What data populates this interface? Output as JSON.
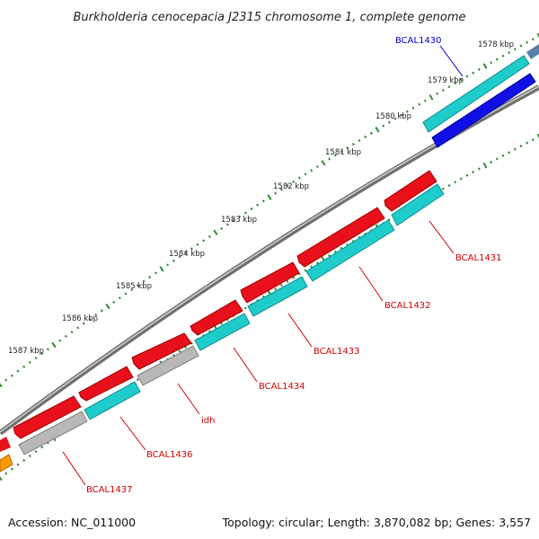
{
  "title": "Burkholderia cenocepacia J2315 chromosome 1, complete genome",
  "footer": {
    "accession": "Accession: NC_011000",
    "summary": "Topology: circular; Length: 3,870,082 bp; Genes: 3,557"
  },
  "colors": {
    "background": "#ffffff",
    "backbone": "#8c8c8c",
    "tick": "#2e8b2e",
    "forward_cds": "#e8111b",
    "reverse_cds": "#1fcccc",
    "other_gene": "#b8b8b8",
    "rna": "#1010e6",
    "misc_feature": "#ff9900",
    "label_red": "#d40000",
    "label_blue": "#0000cc"
  },
  "tick_labels": [
    {
      "text": "1578 kbp"
    },
    {
      "text": "1579 kbp"
    },
    {
      "text": "1580 kbp"
    },
    {
      "text": "1581 kbp"
    },
    {
      "text": "1582 kbp"
    },
    {
      "text": "1583 kbp"
    },
    {
      "text": "1584 kbp"
    },
    {
      "text": "1585 kbp"
    },
    {
      "text": "1586 kbp"
    },
    {
      "text": "1587 kbp"
    }
  ],
  "gene_labels": [
    {
      "text": "BCAL1430",
      "color": "blue"
    },
    {
      "text": "BCAL1431",
      "color": "red"
    },
    {
      "text": "BCAL1432",
      "color": "red"
    },
    {
      "text": "BCAL1433",
      "color": "red"
    },
    {
      "text": "BCAL1434",
      "color": "red"
    },
    {
      "text": "idh",
      "color": "red"
    },
    {
      "text": "BCAL1436",
      "color": "red"
    },
    {
      "text": "BCAL1437",
      "color": "red"
    }
  ]
}
